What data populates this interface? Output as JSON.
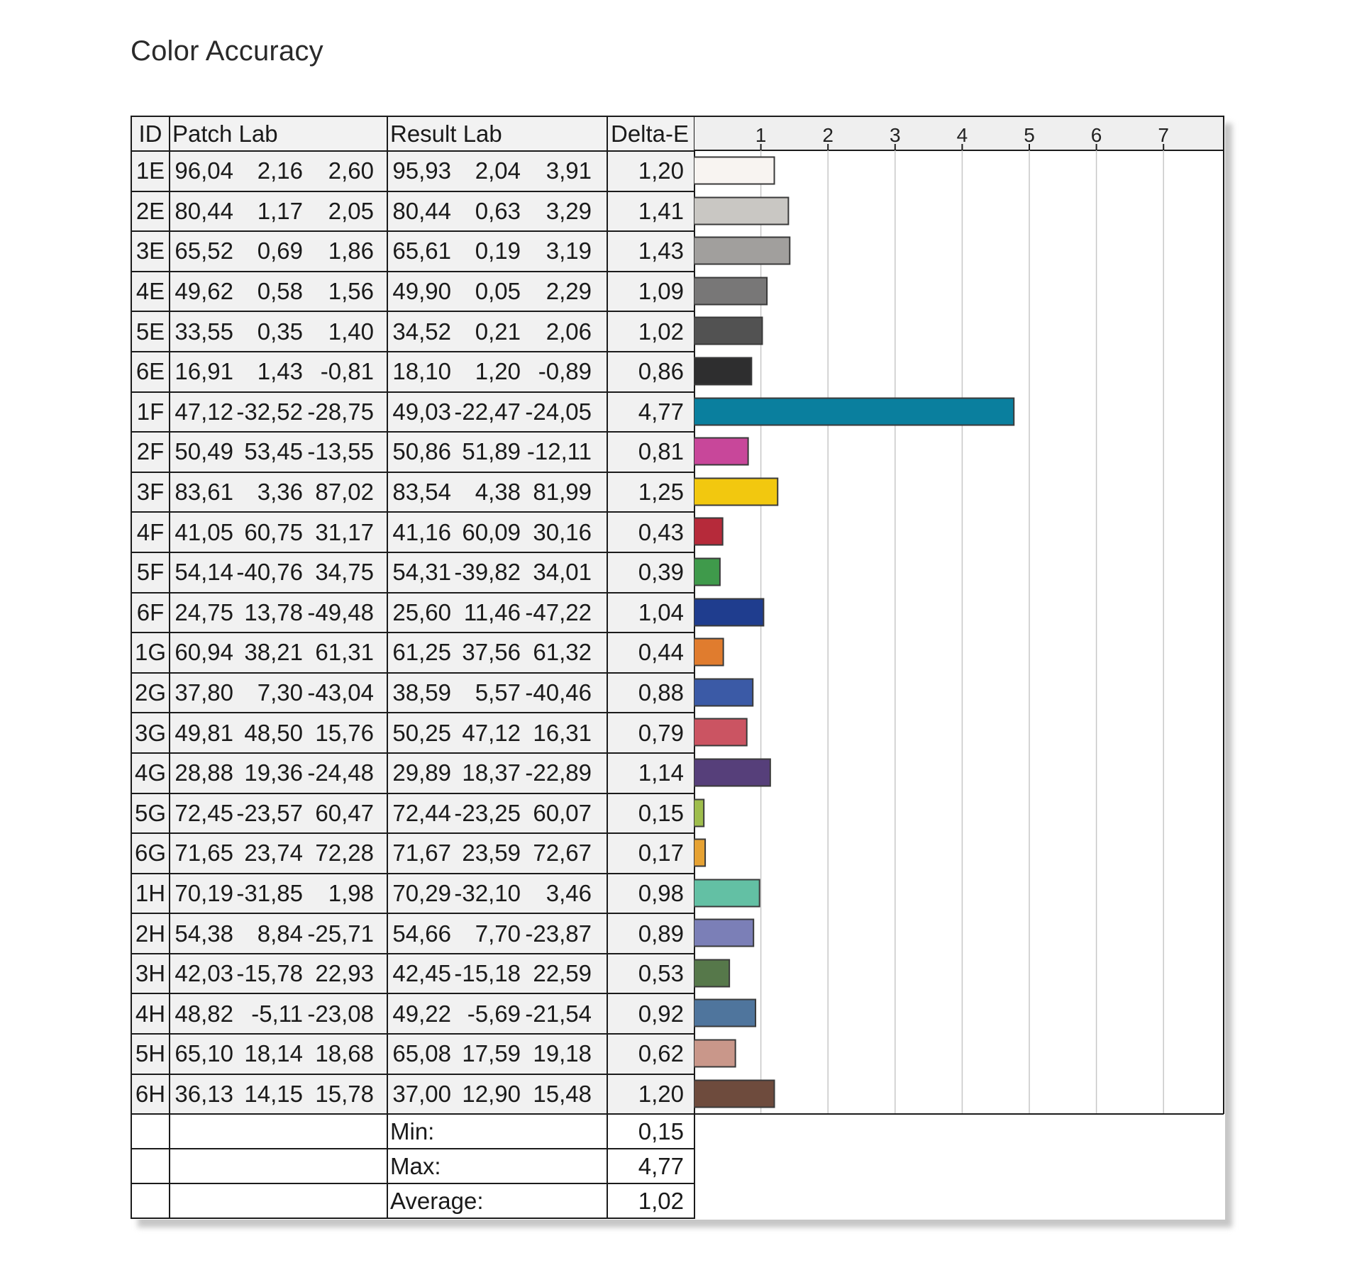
{
  "title": "Color Accuracy",
  "table": {
    "headers": {
      "id": "ID",
      "patch": "Patch Lab",
      "result": "Result Lab",
      "delta": "Delta-E"
    },
    "rows": [
      {
        "id": "1E",
        "patch": [
          "96,04",
          "2,16",
          "2,60"
        ],
        "result": [
          "95,93",
          "2,04",
          "3,91"
        ],
        "delta": "1,20",
        "color": "#f8f4f1"
      },
      {
        "id": "2E",
        "patch": [
          "80,44",
          "1,17",
          "2,05"
        ],
        "result": [
          "80,44",
          "0,63",
          "3,29"
        ],
        "delta": "1,41",
        "color": "#c9c7c3"
      },
      {
        "id": "3E",
        "patch": [
          "65,52",
          "0,69",
          "1,86"
        ],
        "result": [
          "65,61",
          "0,19",
          "3,19"
        ],
        "delta": "1,43",
        "color": "#a19f9d"
      },
      {
        "id": "4E",
        "patch": [
          "49,62",
          "0,58",
          "1,56"
        ],
        "result": [
          "49,90",
          "0,05",
          "2,29"
        ],
        "delta": "1,09",
        "color": "#787777"
      },
      {
        "id": "5E",
        "patch": [
          "33,55",
          "0,35",
          "1,40"
        ],
        "result": [
          "34,52",
          "0,21",
          "2,06"
        ],
        "delta": "1,02",
        "color": "#525252"
      },
      {
        "id": "6E",
        "patch": [
          "16,91",
          "1,43",
          "-0,81"
        ],
        "result": [
          "18,10",
          "1,20",
          "-0,89"
        ],
        "delta": "0,86",
        "color": "#2e2e2f"
      },
      {
        "id": "1F",
        "patch": [
          "47,12",
          "-32,52",
          "-28,75"
        ],
        "result": [
          "49,03",
          "-22,47",
          "-24,05"
        ],
        "delta": "4,77",
        "color": "#0a7f9e"
      },
      {
        "id": "2F",
        "patch": [
          "50,49",
          "53,45",
          "-13,55"
        ],
        "result": [
          "50,86",
          "51,89",
          "-12,11"
        ],
        "delta": "0,81",
        "color": "#c8479a"
      },
      {
        "id": "3F",
        "patch": [
          "83,61",
          "3,36",
          "87,02"
        ],
        "result": [
          "83,54",
          "4,38",
          "81,99"
        ],
        "delta": "1,25",
        "color": "#f2c80f"
      },
      {
        "id": "4F",
        "patch": [
          "41,05",
          "60,75",
          "31,17"
        ],
        "result": [
          "41,16",
          "60,09",
          "30,16"
        ],
        "delta": "0,43",
        "color": "#b62a3a"
      },
      {
        "id": "5F",
        "patch": [
          "54,14",
          "-40,76",
          "34,75"
        ],
        "result": [
          "54,31",
          "-39,82",
          "34,01"
        ],
        "delta": "0,39",
        "color": "#3f9a4b"
      },
      {
        "id": "6F",
        "patch": [
          "24,75",
          "13,78",
          "-49,48"
        ],
        "result": [
          "25,60",
          "11,46",
          "-47,22"
        ],
        "delta": "1,04",
        "color": "#1f3d8e"
      },
      {
        "id": "1G",
        "patch": [
          "60,94",
          "38,21",
          "61,31"
        ],
        "result": [
          "61,25",
          "37,56",
          "61,32"
        ],
        "delta": "0,44",
        "color": "#e07c2e"
      },
      {
        "id": "2G",
        "patch": [
          "37,80",
          "7,30",
          "-43,04"
        ],
        "result": [
          "38,59",
          "5,57",
          "-40,46"
        ],
        "delta": "0,88",
        "color": "#3b5aa6"
      },
      {
        "id": "3G",
        "patch": [
          "49,81",
          "48,50",
          "15,76"
        ],
        "result": [
          "50,25",
          "47,12",
          "16,31"
        ],
        "delta": "0,79",
        "color": "#cb5462"
      },
      {
        "id": "4G",
        "patch": [
          "28,88",
          "19,36",
          "-24,48"
        ],
        "result": [
          "29,89",
          "18,37",
          "-22,89"
        ],
        "delta": "1,14",
        "color": "#563f7a"
      },
      {
        "id": "5G",
        "patch": [
          "72,45",
          "-23,57",
          "60,47"
        ],
        "result": [
          "72,44",
          "-23,25",
          "60,07"
        ],
        "delta": "0,15",
        "color": "#9ebd4c"
      },
      {
        "id": "6G",
        "patch": [
          "71,65",
          "23,74",
          "72,28"
        ],
        "result": [
          "71,67",
          "23,59",
          "72,67"
        ],
        "delta": "0,17",
        "color": "#e6a233"
      },
      {
        "id": "1H",
        "patch": [
          "70,19",
          "-31,85",
          "1,98"
        ],
        "result": [
          "70,29",
          "-32,10",
          "3,46"
        ],
        "delta": "0,98",
        "color": "#63c0a4"
      },
      {
        "id": "2H",
        "patch": [
          "54,38",
          "8,84",
          "-25,71"
        ],
        "result": [
          "54,66",
          "7,70",
          "-23,87"
        ],
        "delta": "0,89",
        "color": "#7b7fb7"
      },
      {
        "id": "3H",
        "patch": [
          "42,03",
          "-15,78",
          "22,93"
        ],
        "result": [
          "42,45",
          "-15,18",
          "22,59"
        ],
        "delta": "0,53",
        "color": "#56784a"
      },
      {
        "id": "4H",
        "patch": [
          "48,82",
          "-5,11",
          "-23,08"
        ],
        "result": [
          "49,22",
          "-5,69",
          "-21,54"
        ],
        "delta": "0,92",
        "color": "#4f759d"
      },
      {
        "id": "5H",
        "patch": [
          "65,10",
          "18,14",
          "18,68"
        ],
        "result": [
          "65,08",
          "17,59",
          "19,18"
        ],
        "delta": "0,62",
        "color": "#c9978a"
      },
      {
        "id": "6H",
        "patch": [
          "36,13",
          "14,15",
          "15,78"
        ],
        "result": [
          "37,00",
          "12,90",
          "15,48"
        ],
        "delta": "1,20",
        "color": "#6e4b3d"
      }
    ],
    "summary": [
      {
        "label": "Min:",
        "value": "0,15"
      },
      {
        "label": "Max:",
        "value": "4,77"
      },
      {
        "label": "Average:",
        "value": "1,02"
      }
    ]
  },
  "chart_data": {
    "type": "bar",
    "orientation": "horizontal",
    "title": "Color Accuracy",
    "xlabel": "",
    "ylabel": "",
    "xlim": [
      0,
      8
    ],
    "ticks": [
      1,
      2,
      3,
      4,
      5,
      6,
      7
    ],
    "grid": true,
    "categories": [
      "1E",
      "2E",
      "3E",
      "4E",
      "5E",
      "6E",
      "1F",
      "2F",
      "3F",
      "4F",
      "5F",
      "6F",
      "1G",
      "2G",
      "3G",
      "4G",
      "5G",
      "6G",
      "1H",
      "2H",
      "3H",
      "4H",
      "5H",
      "6H"
    ],
    "values": [
      1.2,
      1.41,
      1.43,
      1.09,
      1.02,
      0.86,
      4.77,
      0.81,
      1.25,
      0.43,
      0.39,
      1.04,
      0.44,
      0.88,
      0.79,
      1.14,
      0.15,
      0.17,
      0.98,
      0.89,
      0.53,
      0.92,
      0.62,
      1.2
    ]
  }
}
